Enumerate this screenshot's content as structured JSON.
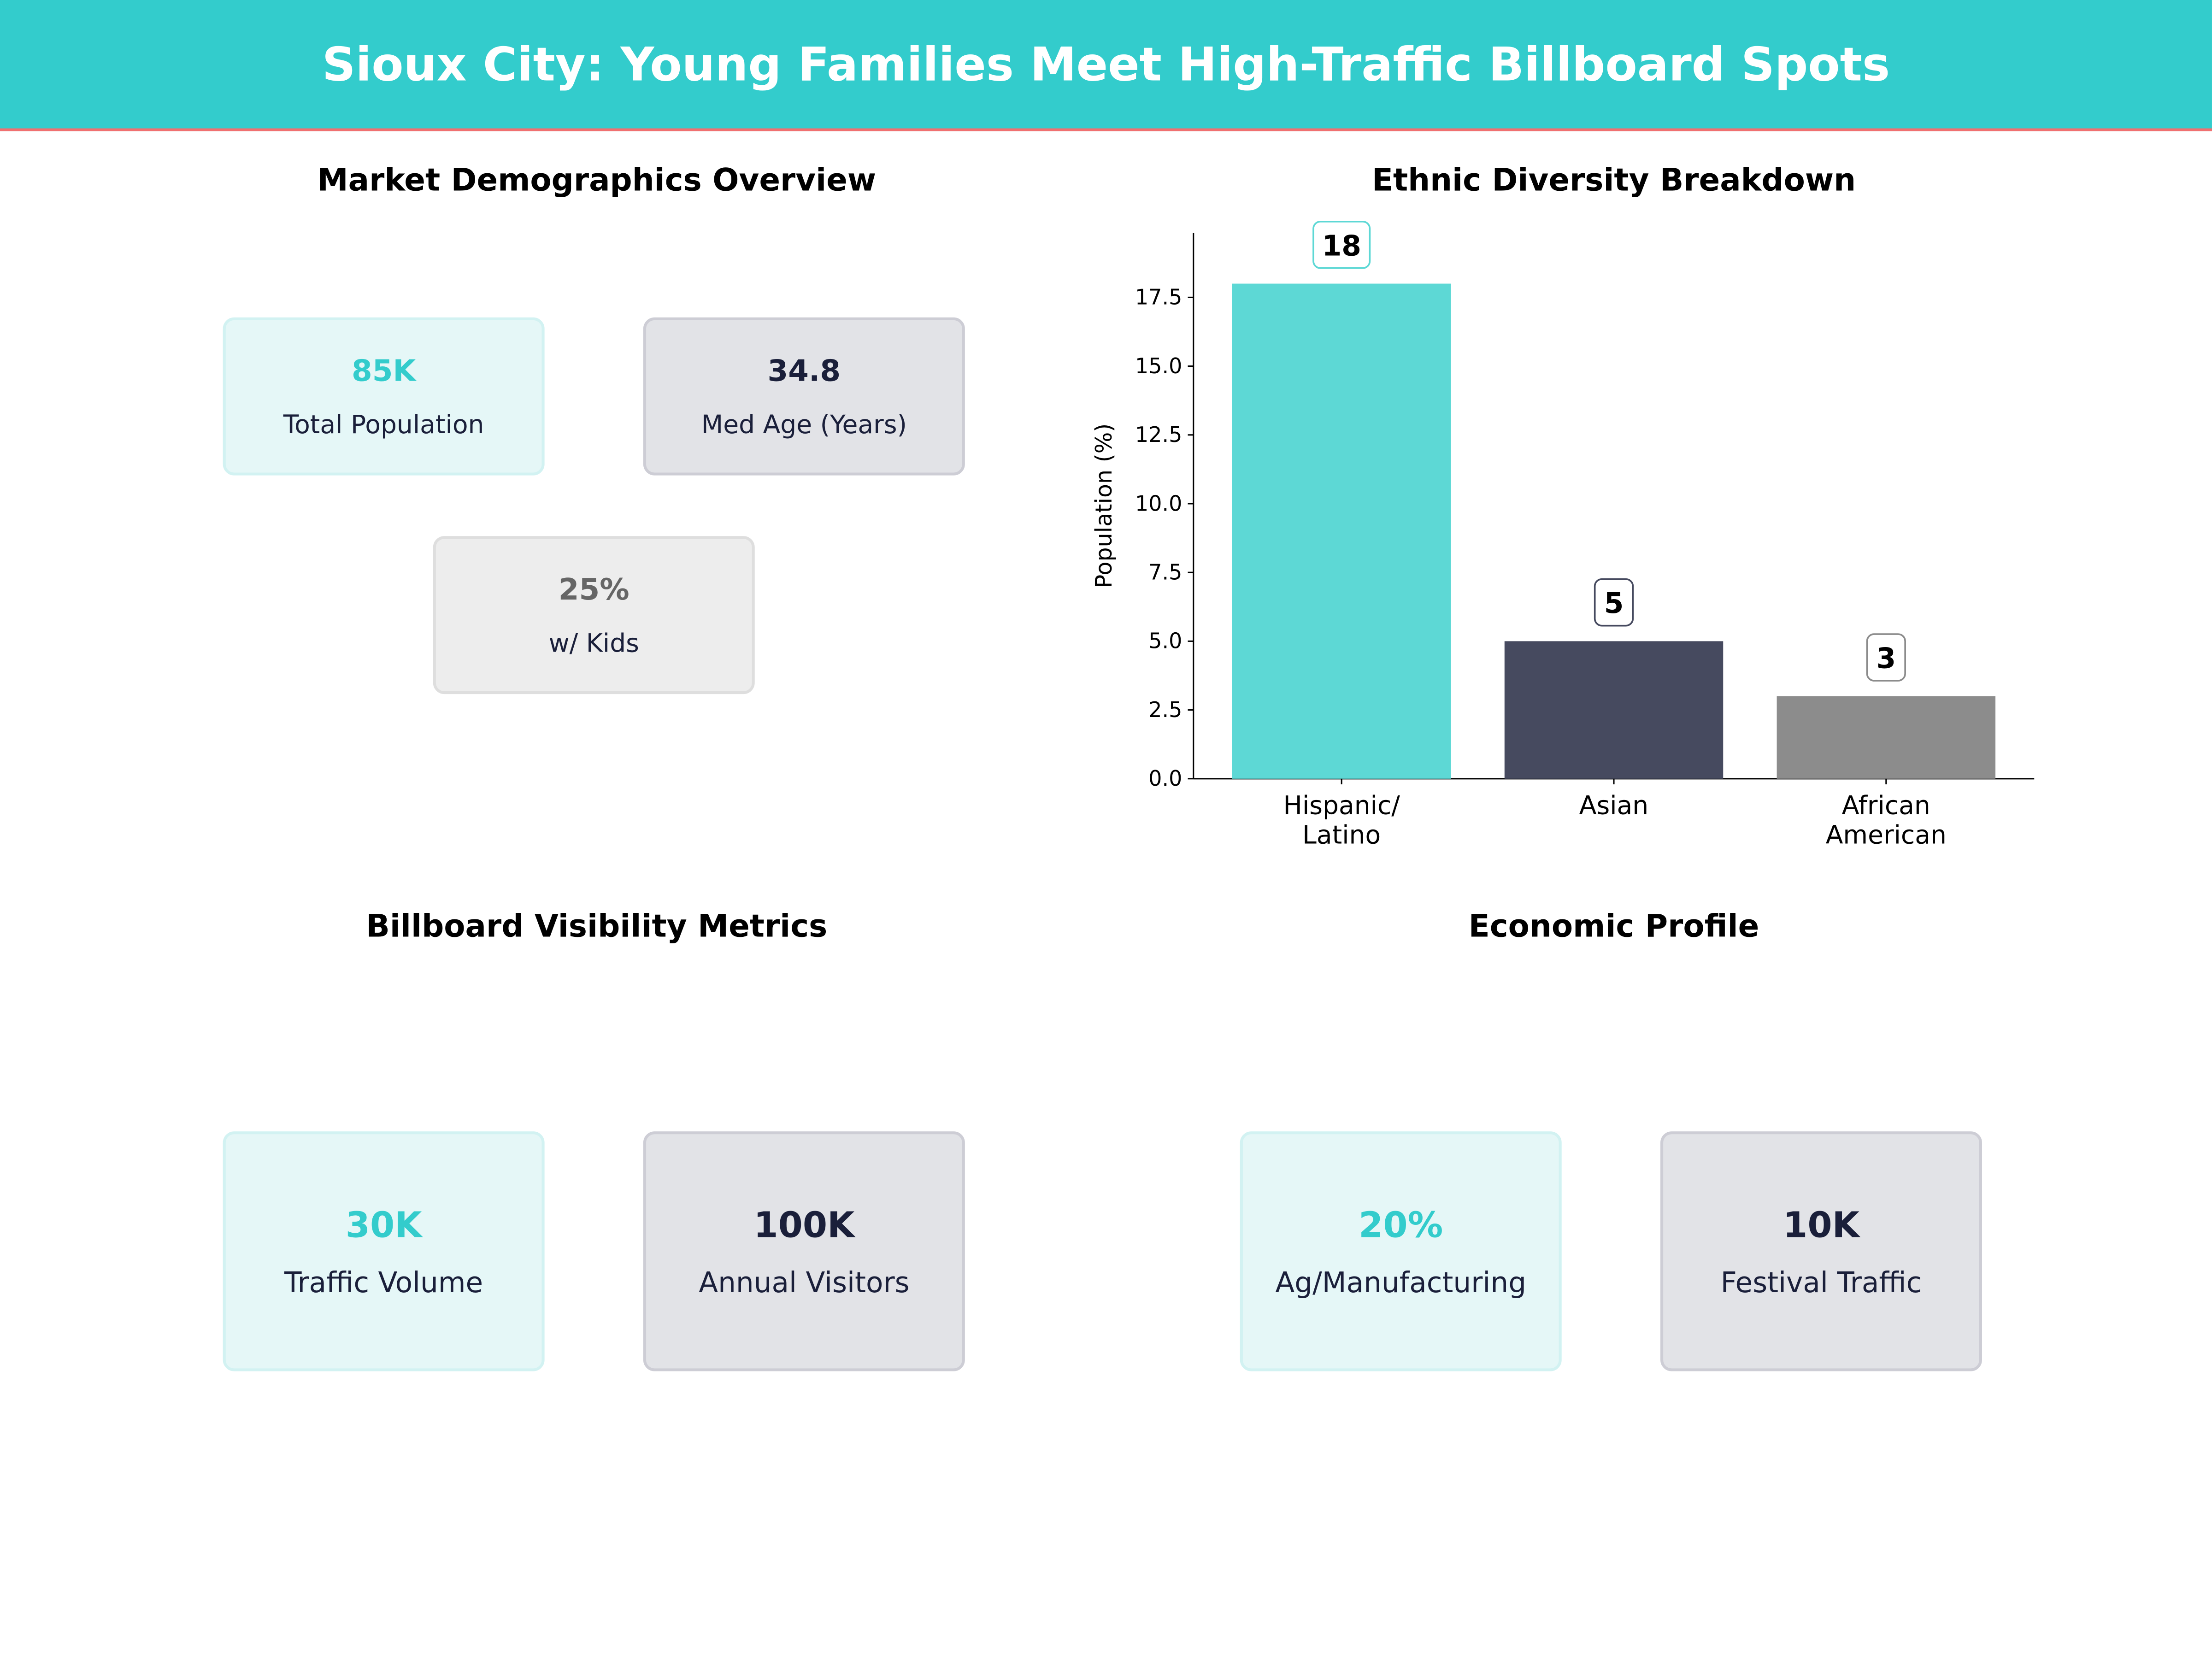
{
  "header": {
    "title": "Sioux City: Young Families Meet High-Traffic Billboard Spots"
  },
  "demographics": {
    "title": "Market Demographics Overview",
    "cards": [
      {
        "value": "85K",
        "label": "Total Population",
        "style": "teal"
      },
      {
        "value": "34.8",
        "label": "Med Age (Years)",
        "style": "navy"
      },
      {
        "value": "25%",
        "label": "w/ Kids",
        "style": "gray"
      }
    ]
  },
  "billboard": {
    "title": "Billboard Visibility Metrics",
    "cards": [
      {
        "value": "30K",
        "label": "Traffic Volume",
        "style": "teal"
      },
      {
        "value": "100K",
        "label": "Annual Visitors",
        "style": "navy"
      }
    ]
  },
  "economic": {
    "title": "Economic Profile",
    "cards": [
      {
        "value": "20%",
        "label": "Ag/Manufacturing",
        "style": "teal"
      },
      {
        "value": "10K",
        "label": "Festival Traffic",
        "style": "navy"
      }
    ]
  },
  "colors": {
    "teal": "#33CCCC",
    "navy": "#1A1F3A",
    "gray": "#666666",
    "accent_line": "#F07070"
  },
  "chart_data": {
    "type": "bar",
    "title": "Ethnic Diversity Breakdown",
    "categories": [
      "Hispanic/\nLatino",
      "Asian",
      "African\nAmerican"
    ],
    "values": [
      18,
      5,
      3
    ],
    "data_labels": [
      "18",
      "5",
      "3"
    ],
    "bar_colors": [
      "#5DD8D5",
      "#464A5F",
      "#8C8C8C"
    ],
    "label_border_colors": [
      "#5DD8D5",
      "#464A5F",
      "#8C8C8C"
    ],
    "xlabel": "",
    "ylabel": "Population (%)",
    "ylim": [
      0,
      19.85
    ],
    "yticks": [
      "0.0",
      "2.5",
      "5.0",
      "7.5",
      "10.0",
      "12.5",
      "15.0",
      "17.5"
    ],
    "grid": false,
    "legend": "none"
  }
}
